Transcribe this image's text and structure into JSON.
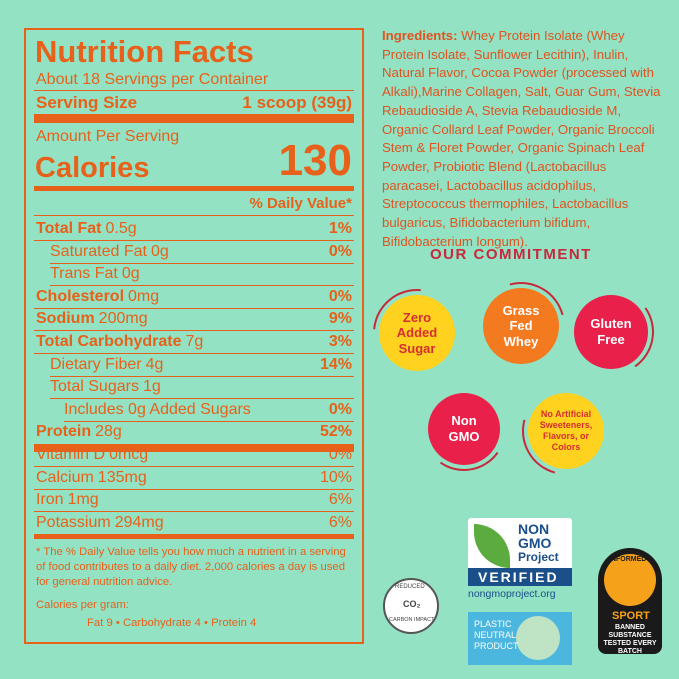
{
  "nutrition": {
    "title": "Nutrition Facts",
    "servings": "About 18 Servings per Container",
    "serving_size_label": "Serving Size",
    "serving_size_value": "1 scoop (39g)",
    "amount_per_serving": "Amount Per Serving",
    "calories_label": "Calories",
    "calories_value": "130",
    "daily_value_header": "% Daily Value*",
    "rows": [
      {
        "name": "Total Fat",
        "amount": "0.5g",
        "dv": "1%"
      },
      {
        "name": "Saturated Fat",
        "amount": "0g",
        "dv": "0%"
      },
      {
        "name": "Trans Fat",
        "amount": "0g"
      },
      {
        "name": "Cholesterol",
        "amount": "0mg",
        "dv": "0%"
      },
      {
        "name": "Sodium",
        "amount": "200mg",
        "dv": "9%"
      },
      {
        "name": "Total Carbohydrate",
        "amount": "7g",
        "dv": "3%"
      },
      {
        "name": "Dietary Fiber",
        "amount": "4g",
        "dv": "14%"
      },
      {
        "name": "Total Sugars",
        "amount": "1g"
      },
      {
        "name": "Includes 0g Added Sugars",
        "dv": "0%"
      },
      {
        "name": "Protein",
        "amount": "28g",
        "dv": "52%"
      },
      {
        "name": "Vitamin D",
        "amount": "0mcg",
        "dv": "0%"
      },
      {
        "name": "Calcium",
        "amount": "135mg",
        "dv": "10%"
      },
      {
        "name": "Iron",
        "amount": "1mg",
        "dv": "6%"
      },
      {
        "name": "Potassium",
        "amount": "294mg",
        "dv": "6%"
      }
    ],
    "footnote": "* The % Daily Value tells you how much a nutrient in a serving of food contributes to a daily diet. 2,000 calories a day is used for general nutrition advice.",
    "calories_per_gram_label": "Calories per gram:",
    "calories_per_gram": "Fat 9 • Carbohydrate 4 • Protein 4"
  },
  "ingredients": {
    "label": "Ingredients:",
    "text": "Whey Protein Isolate (Whey Protein Isolate, Sunflower Lecithin), Inulin, Natural Flavor, Cocoa Powder (processed with Alkali),Marine Collagen, Salt, Guar Gum, Stevia Rebaudioside A, Stevia Rebaudioside M, Organic Collard Leaf Powder, Organic Broccoli Stem & Floret Powder, Organic Spinach Leaf Powder, Probiotic Blend (Lactobacillus paracasei, Lactobacillus acidophilus, Streptococcus thermophiles, Lactobacillus bulgaricus, Bifidobacterium bifidum, Bifidobacterium longum)."
  },
  "commitment": {
    "title": "OUR COMMITMENT",
    "badges": [
      "Zero Added Sugar",
      "Grass Fed Whey",
      "Gluten Free",
      "Non GMO",
      "No Artificial Sweeteners, Flavors, or Colors"
    ]
  },
  "certifications": {
    "non_gmo": [
      "NON",
      "GMO",
      "Project",
      "VERIFIED",
      "nongmoproject.org"
    ],
    "carbon": [
      "REDUCED",
      "CO₂",
      "CARBON IMPACT"
    ],
    "plastic": [
      "PLASTIC",
      "NEUTRAL",
      "PRODUCT"
    ],
    "informed": [
      "INFORMED",
      "SPORT",
      "BANNED SUBSTANCE TESTED EVERY BATCH"
    ]
  }
}
